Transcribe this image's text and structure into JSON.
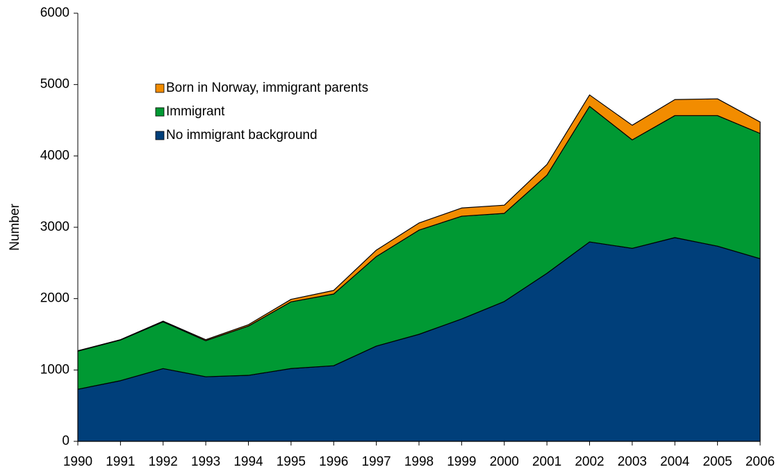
{
  "chart_data": {
    "type": "stacked_area",
    "y_label": "Number",
    "x": [
      1990,
      1991,
      1992,
      1993,
      1994,
      1995,
      1996,
      1997,
      1998,
      1999,
      2000,
      2001,
      2002,
      2003,
      2004,
      2005,
      2006
    ],
    "xlim": [
      1990,
      2006
    ],
    "xticks": [
      1990,
      1991,
      1992,
      1993,
      1994,
      1995,
      1996,
      1997,
      1998,
      1999,
      2000,
      2001,
      2002,
      2003,
      2004,
      2005,
      2006
    ],
    "ylim": [
      0,
      6000
    ],
    "yticks": [
      0,
      1000,
      2000,
      3000,
      4000,
      5000,
      6000
    ],
    "grid": false,
    "legend_position": "upper-left",
    "series": [
      {
        "name": "No immigrant background",
        "color": "#003f7a",
        "values": [
          730,
          850,
          1020,
          905,
          925,
          1020,
          1060,
          1335,
          1500,
          1715,
          1960,
          2355,
          2795,
          2705,
          2855,
          2735,
          2560
        ]
      },
      {
        "name": "Immigrant",
        "color": "#009933",
        "values": [
          535,
          570,
          655,
          505,
          690,
          935,
          1005,
          1255,
          1460,
          1440,
          1235,
          1375,
          1900,
          1520,
          1710,
          1830,
          1755
        ]
      },
      {
        "name": "Born in Norway, immigrant parents",
        "color": "#f28c00",
        "values": [
          5,
          5,
          10,
          15,
          20,
          35,
          50,
          90,
          100,
          115,
          115,
          150,
          160,
          205,
          225,
          235,
          160
        ]
      }
    ]
  }
}
